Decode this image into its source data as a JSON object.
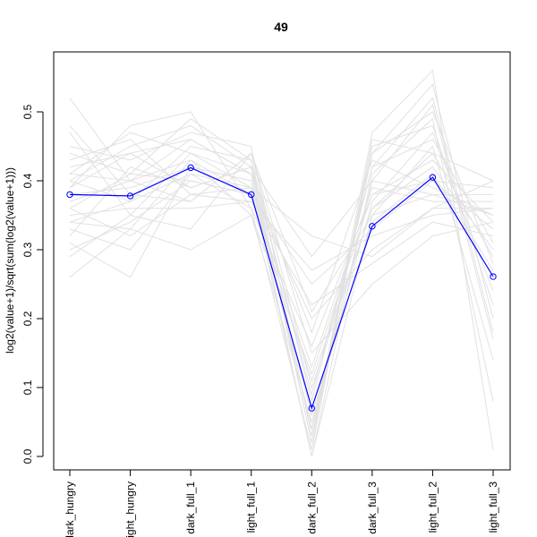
{
  "chart_data": {
    "type": "line",
    "title": "49",
    "xlabel": "",
    "ylabel": "log2(value+1)/sqrt(sum(log2(value+1)))",
    "categories": [
      "dark_hungry",
      "light_hungry",
      "dark_full_1",
      "light_full_1",
      "dark_full_2",
      "dark_full_3",
      "light_full_2",
      "light_full_3"
    ],
    "y_ticks": [
      "0.0",
      "0.1",
      "0.2",
      "0.3",
      "0.4",
      "0.5"
    ],
    "ylim": [
      0.0,
      0.55
    ],
    "grid": false,
    "legend": "none",
    "series": [
      {
        "values": [
          0.38,
          0.378,
          0.419,
          0.38,
          0.07,
          0.334,
          0.405,
          0.261
        ]
      }
    ],
    "background_series": [
      [
        0.52,
        0.4,
        0.46,
        0.41,
        0.04,
        0.44,
        0.5,
        0.28
      ],
      [
        0.26,
        0.33,
        0.3,
        0.35,
        0.12,
        0.38,
        0.4,
        0.33
      ],
      [
        0.4,
        0.45,
        0.48,
        0.42,
        0.02,
        0.47,
        0.56,
        0.01
      ],
      [
        0.36,
        0.32,
        0.38,
        0.39,
        0.2,
        0.3,
        0.36,
        0.36
      ],
      [
        0.31,
        0.26,
        0.42,
        0.4,
        0.0,
        0.35,
        0.45,
        0.14
      ],
      [
        0.44,
        0.41,
        0.4,
        0.38,
        0.25,
        0.33,
        0.4,
        0.39
      ],
      [
        0.34,
        0.37,
        0.45,
        0.43,
        0.08,
        0.42,
        0.52,
        0.18
      ],
      [
        0.39,
        0.48,
        0.5,
        0.36,
        0.01,
        0.46,
        0.44,
        0.4
      ],
      [
        0.29,
        0.35,
        0.33,
        0.44,
        0.15,
        0.25,
        0.32,
        0.34
      ],
      [
        0.42,
        0.44,
        0.39,
        0.42,
        0.29,
        0.4,
        0.38,
        0.38
      ],
      [
        0.37,
        0.4,
        0.43,
        0.35,
        0.05,
        0.37,
        0.47,
        0.24
      ],
      [
        0.48,
        0.38,
        0.37,
        0.44,
        0.1,
        0.36,
        0.42,
        0.3
      ],
      [
        0.33,
        0.3,
        0.41,
        0.39,
        0.0,
        0.41,
        0.49,
        0.08
      ],
      [
        0.41,
        0.47,
        0.44,
        0.41,
        0.18,
        0.43,
        0.39,
        0.35
      ],
      [
        0.35,
        0.36,
        0.36,
        0.37,
        0.22,
        0.28,
        0.34,
        0.32
      ],
      [
        0.45,
        0.43,
        0.47,
        0.45,
        0.03,
        0.44,
        0.54,
        0.2
      ],
      [
        0.3,
        0.34,
        0.4,
        0.38,
        0.13,
        0.39,
        0.37,
        0.37
      ],
      [
        0.38,
        0.39,
        0.42,
        0.4,
        0.06,
        0.34,
        0.41,
        0.27
      ],
      [
        0.43,
        0.46,
        0.38,
        0.37,
        0.27,
        0.32,
        0.35,
        0.36
      ],
      [
        0.36,
        0.41,
        0.49,
        0.43,
        0.02,
        0.45,
        0.48,
        0.22
      ],
      [
        0.4,
        0.37,
        0.41,
        0.36,
        0.16,
        0.38,
        0.43,
        0.34
      ],
      [
        0.32,
        0.42,
        0.39,
        0.42,
        0.09,
        0.42,
        0.46,
        0.31
      ],
      [
        0.47,
        0.35,
        0.44,
        0.39,
        0.32,
        0.29,
        0.36,
        0.4
      ],
      [
        0.39,
        0.44,
        0.46,
        0.41,
        0.04,
        0.4,
        0.51,
        0.17
      ],
      [
        0.34,
        0.33,
        0.43,
        0.38,
        0.11,
        0.36,
        0.44,
        0.29
      ],
      [
        0.41,
        0.4,
        0.37,
        0.44,
        0.21,
        0.35,
        0.38,
        0.35
      ]
    ]
  }
}
